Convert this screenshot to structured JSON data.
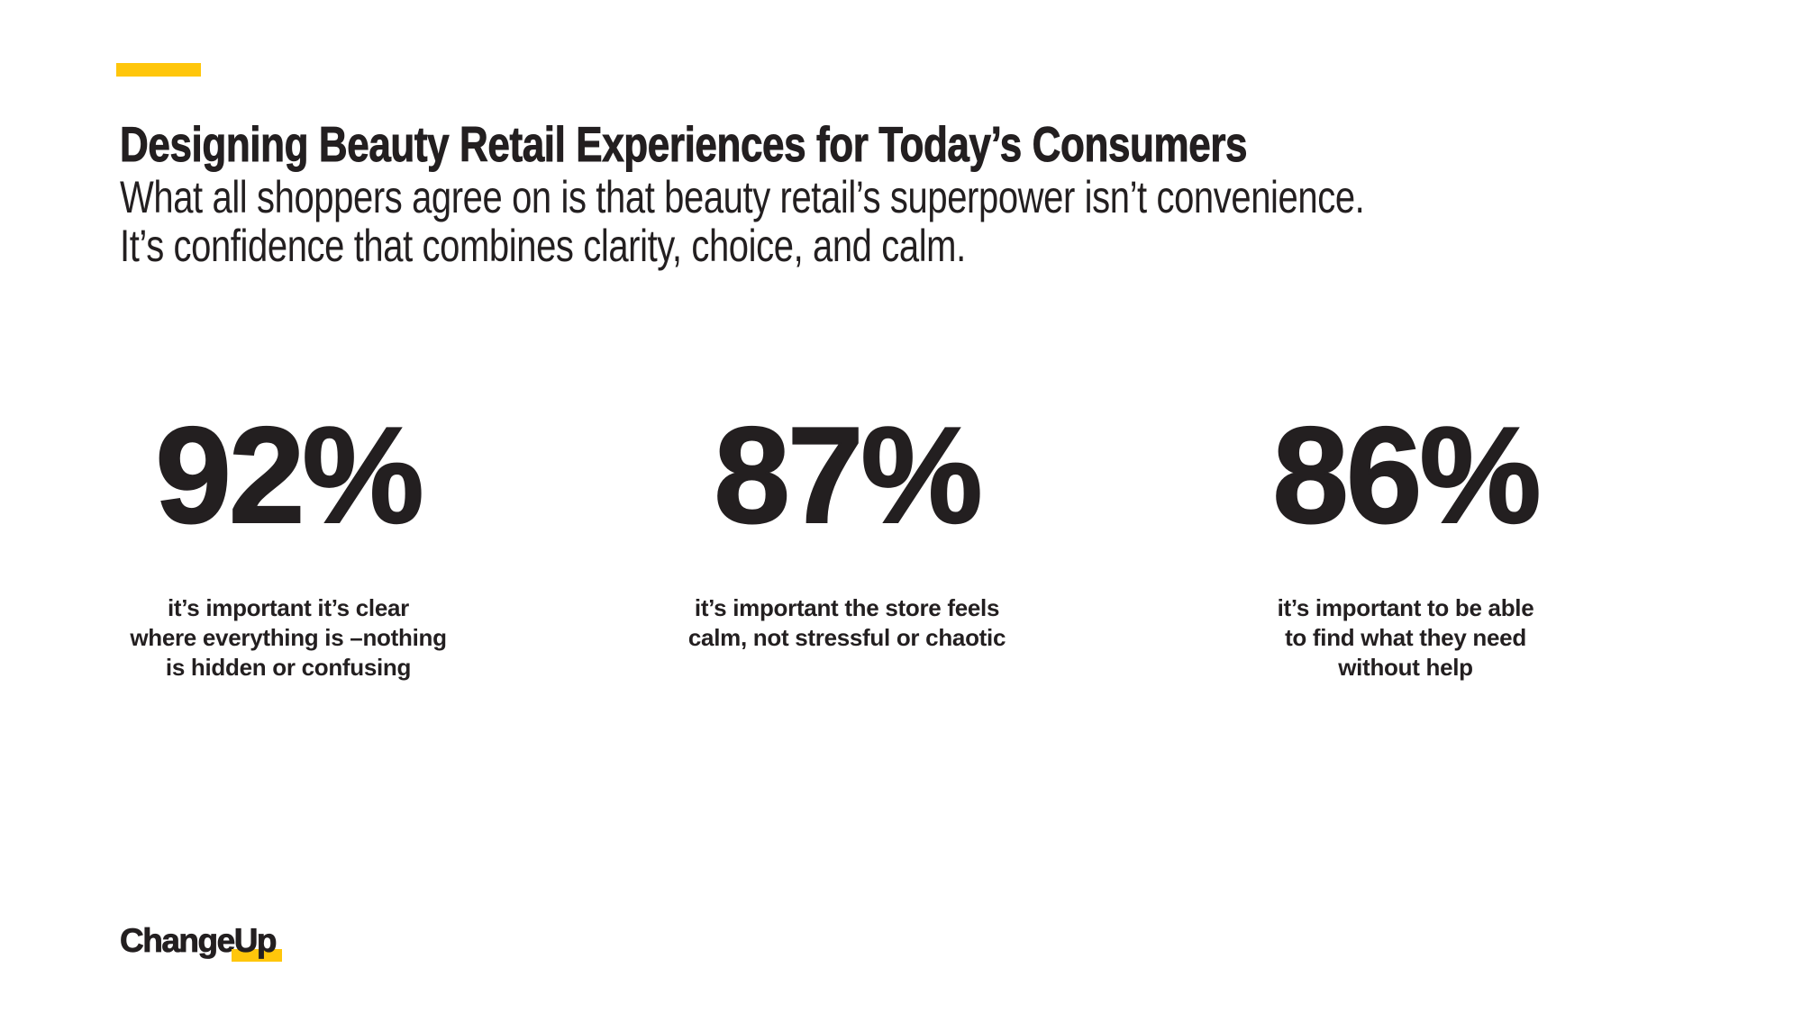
{
  "slide": {
    "title": "Designing Beauty Retail Experiences for Today’s Consumers",
    "subtitle_lines": [
      "What all shoppers agree on is that beauty retail’s superpower isn’t convenience.",
      "It’s confidence that combines clarity, choice, and calm."
    ]
  },
  "stats": [
    {
      "value": "92%",
      "caption_lines": [
        "it’s important it’s clear",
        "where everything is –nothing",
        "is hidden or confusing"
      ]
    },
    {
      "value": "87%",
      "caption_lines": [
        "it’s important the store feels",
        "calm, not stressful or chaotic"
      ]
    },
    {
      "value": "86%",
      "caption_lines": [
        "it’s important to be able",
        "to find what they need",
        "without help"
      ]
    }
  ],
  "logo": {
    "text_black": "Change",
    "text_highlight": "Up"
  },
  "colors": {
    "accent_yellow": "#FFC60B",
    "text_black": "#231F20",
    "background": "#FFFFFF"
  }
}
